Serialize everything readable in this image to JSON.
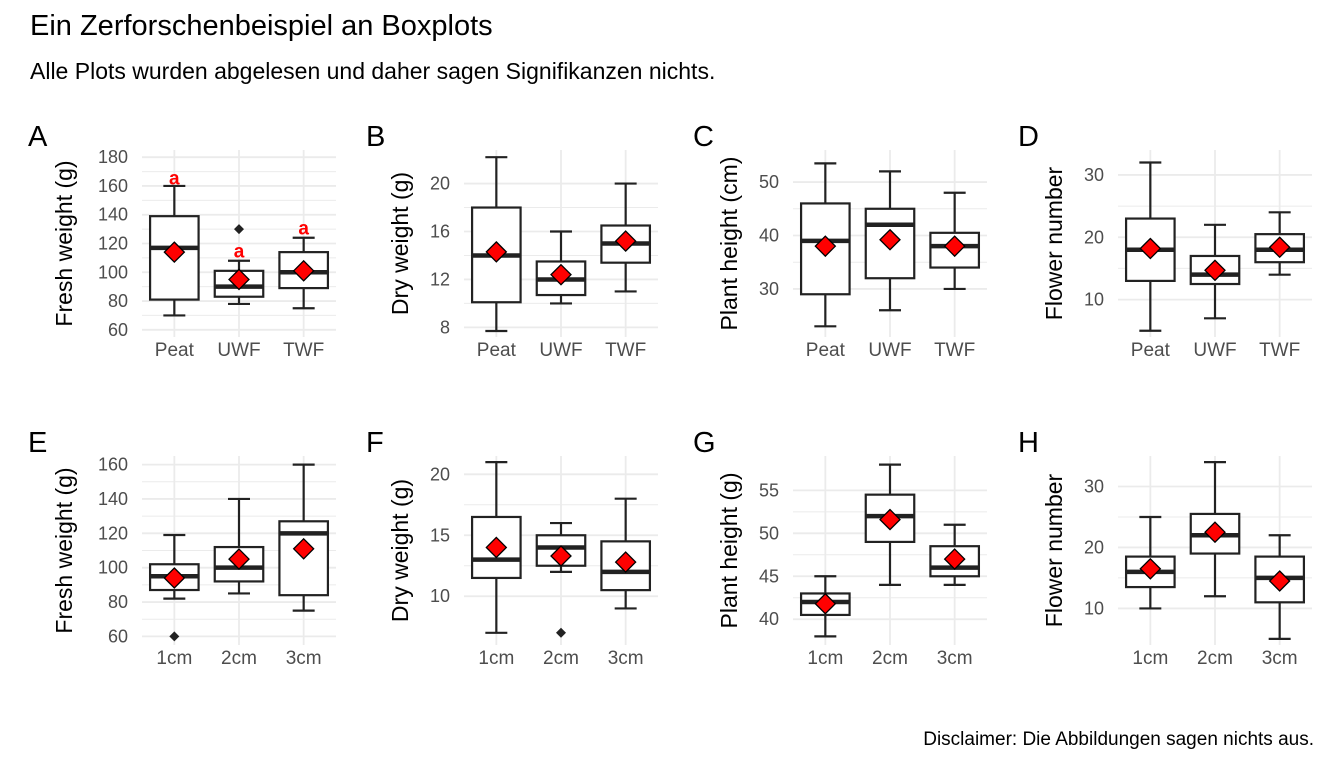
{
  "figure": {
    "title": "Ein Zerforschenbeispiel an Boxplots",
    "subtitle": "Alle Plots wurden abgelesen und daher sagen Signifikanzen nichts.",
    "caption": "Disclaimer: Die Abbildungen sagen nichts aus."
  },
  "colors": {
    "grid": "#ebebeb",
    "box_line": "#222222",
    "mean_fill": "#ff0000",
    "mean_stroke": "#000000",
    "letter": "#ff0000",
    "tick_text": "#4d4d4d"
  },
  "chart_data": [
    {
      "tag": "A",
      "type": "boxplot",
      "ylabel": "Fresh weight (g)",
      "categories": [
        "Peat",
        "UWF",
        "TWF"
      ],
      "yticks": [
        60,
        80,
        100,
        120,
        140,
        160,
        180
      ],
      "ylim": [
        55,
        185
      ],
      "boxes": [
        {
          "whisker_low": 70,
          "q1": 81,
          "median": 117,
          "q3": 139,
          "whisker_high": 160,
          "mean": 114,
          "outliers": [],
          "letter": "a",
          "letter_y": 166
        },
        {
          "whisker_low": 78,
          "q1": 83,
          "median": 90,
          "q3": 101,
          "whisker_high": 108,
          "mean": 95,
          "outliers": [
            130
          ],
          "letter": "a",
          "letter_y": 115
        },
        {
          "whisker_low": 75,
          "q1": 89,
          "median": 100,
          "q3": 114,
          "whisker_high": 124,
          "mean": 101,
          "outliers": [],
          "letter": "a",
          "letter_y": 131
        }
      ]
    },
    {
      "tag": "B",
      "type": "boxplot",
      "ylabel": "Dry weight (g)",
      "categories": [
        "Peat",
        "UWF",
        "TWF"
      ],
      "yticks": [
        8,
        12,
        16,
        20
      ],
      "ylim": [
        7.2,
        22.8
      ],
      "boxes": [
        {
          "whisker_low": 7.7,
          "q1": 10.1,
          "median": 14,
          "q3": 18,
          "whisker_high": 22.2,
          "mean": 14.3,
          "outliers": []
        },
        {
          "whisker_low": 10,
          "q1": 10.7,
          "median": 12,
          "q3": 13.5,
          "whisker_high": 16,
          "mean": 12.4,
          "outliers": []
        },
        {
          "whisker_low": 11,
          "q1": 13.4,
          "median": 15,
          "q3": 16.5,
          "whisker_high": 20,
          "mean": 15.2,
          "outliers": []
        }
      ]
    },
    {
      "tag": "C",
      "type": "boxplot",
      "ylabel": "Plant height (cm)",
      "categories": [
        "Peat",
        "UWF",
        "TWF"
      ],
      "yticks": [
        30,
        40,
        50
      ],
      "ylim": [
        21,
        56
      ],
      "boxes": [
        {
          "whisker_low": 23,
          "q1": 29,
          "median": 39,
          "q3": 46,
          "whisker_high": 53.5,
          "mean": 38,
          "outliers": []
        },
        {
          "whisker_low": 26,
          "q1": 32,
          "median": 42,
          "q3": 45,
          "whisker_high": 52,
          "mean": 39.2,
          "outliers": []
        },
        {
          "whisker_low": 30,
          "q1": 34,
          "median": 38,
          "q3": 40.5,
          "whisker_high": 48,
          "mean": 38,
          "outliers": []
        }
      ]
    },
    {
      "tag": "D",
      "type": "boxplot",
      "ylabel": "Flower number",
      "categories": [
        "Peat",
        "UWF",
        "TWF"
      ],
      "yticks": [
        10,
        20,
        30
      ],
      "ylim": [
        4,
        34
      ],
      "boxes": [
        {
          "whisker_low": 5,
          "q1": 13,
          "median": 18,
          "q3": 23,
          "whisker_high": 32,
          "mean": 18.2,
          "outliers": []
        },
        {
          "whisker_low": 7,
          "q1": 12.5,
          "median": 14,
          "q3": 17,
          "whisker_high": 22,
          "mean": 14.7,
          "outliers": []
        },
        {
          "whisker_low": 14,
          "q1": 16,
          "median": 18,
          "q3": 20.5,
          "whisker_high": 24,
          "mean": 18.4,
          "outliers": []
        }
      ]
    },
    {
      "tag": "E",
      "type": "boxplot",
      "ylabel": "Fresh weight (g)",
      "categories": [
        "1cm",
        "2cm",
        "3cm"
      ],
      "yticks": [
        60,
        80,
        100,
        120,
        140,
        160
      ],
      "ylim": [
        55,
        165
      ],
      "boxes": [
        {
          "whisker_low": 82,
          "q1": 87,
          "median": 95,
          "q3": 102,
          "whisker_high": 119,
          "mean": 94,
          "outliers": [
            60
          ]
        },
        {
          "whisker_low": 85,
          "q1": 92,
          "median": 100,
          "q3": 112,
          "whisker_high": 140,
          "mean": 105,
          "outliers": []
        },
        {
          "whisker_low": 75,
          "q1": 84,
          "median": 120,
          "q3": 127,
          "whisker_high": 160,
          "mean": 111,
          "outliers": []
        }
      ]
    },
    {
      "tag": "F",
      "type": "boxplot",
      "ylabel": "Dry weight (g)",
      "categories": [
        "1cm",
        "2cm",
        "3cm"
      ],
      "yticks": [
        10,
        15,
        20
      ],
      "ylim": [
        6,
        21.5
      ],
      "boxes": [
        {
          "whisker_low": 7,
          "q1": 11.5,
          "median": 13,
          "q3": 16.5,
          "whisker_high": 21,
          "mean": 14,
          "outliers": []
        },
        {
          "whisker_low": 12,
          "q1": 12.5,
          "median": 14,
          "q3": 15,
          "whisker_high": 16,
          "mean": 13.3,
          "outliers": [
            7
          ]
        },
        {
          "whisker_low": 9,
          "q1": 10.5,
          "median": 12,
          "q3": 14.5,
          "whisker_high": 18,
          "mean": 12.8,
          "outliers": []
        }
      ]
    },
    {
      "tag": "G",
      "type": "boxplot",
      "ylabel": "Plant height (g)",
      "categories": [
        "1cm",
        "2cm",
        "3cm"
      ],
      "yticks": [
        40,
        45,
        50,
        55
      ],
      "ylim": [
        37,
        59
      ],
      "boxes": [
        {
          "whisker_low": 38,
          "q1": 40.5,
          "median": 42,
          "q3": 43,
          "whisker_high": 45,
          "mean": 41.8,
          "outliers": []
        },
        {
          "whisker_low": 44,
          "q1": 49,
          "median": 52,
          "q3": 54.5,
          "whisker_high": 58,
          "mean": 51.6,
          "outliers": []
        },
        {
          "whisker_low": 44,
          "q1": 45,
          "median": 46,
          "q3": 48.5,
          "whisker_high": 51,
          "mean": 47,
          "outliers": []
        }
      ]
    },
    {
      "tag": "H",
      "type": "boxplot",
      "ylabel": "Flower number",
      "categories": [
        "1cm",
        "2cm",
        "3cm"
      ],
      "yticks": [
        10,
        20,
        30
      ],
      "ylim": [
        4,
        35
      ],
      "boxes": [
        {
          "whisker_low": 10,
          "q1": 13.5,
          "median": 16,
          "q3": 18.5,
          "whisker_high": 25,
          "mean": 16.5,
          "outliers": []
        },
        {
          "whisker_low": 12,
          "q1": 19,
          "median": 22,
          "q3": 25.5,
          "whisker_high": 34,
          "mean": 22.5,
          "outliers": []
        },
        {
          "whisker_low": 5,
          "q1": 11,
          "median": 15,
          "q3": 18.5,
          "whisker_high": 22,
          "mean": 14.5,
          "outliers": []
        }
      ]
    }
  ]
}
